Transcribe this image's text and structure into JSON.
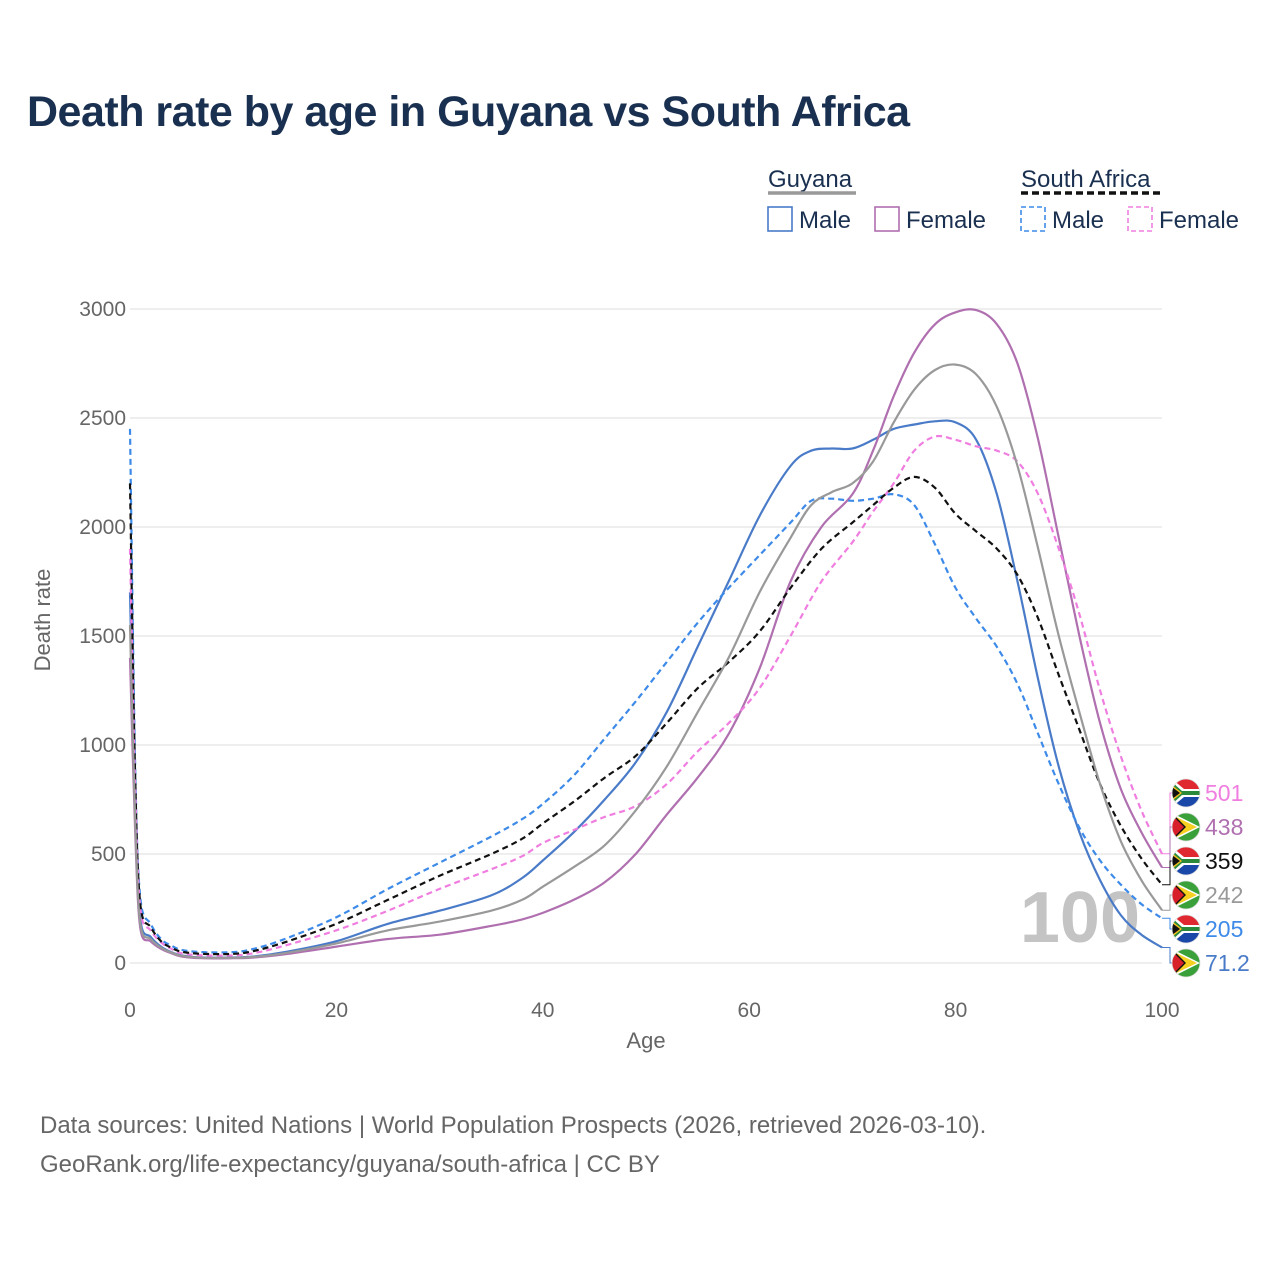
{
  "title": "Death rate by age in Guyana vs South Africa",
  "source_line1": "Data sources: United Nations | World Population Prospects (2026, retrieved 2026-03-10).",
  "source_line2": "GeoRank.org/life-expectancy/guyana/south-africa | CC BY",
  "legend": {
    "groups": [
      {
        "name": "Guyana",
        "dashed": false,
        "male": "Male",
        "female": "Female"
      },
      {
        "name": "South Africa",
        "dashed": true,
        "male": "Male",
        "female": "Female"
      }
    ]
  },
  "watermark": "100",
  "chart_data": {
    "type": "line",
    "title": "Death rate by age in Guyana vs South Africa",
    "xlabel": "Age",
    "ylabel": "Death rate",
    "xlim": [
      0,
      100
    ],
    "ylim": [
      0,
      3000
    ],
    "xticks": [
      0,
      20,
      40,
      60,
      80,
      100
    ],
    "yticks": [
      0,
      500,
      1000,
      1500,
      2000,
      2500,
      3000
    ],
    "grid": true,
    "series": [
      {
        "name": "Guyana Male",
        "color": "#4a7bc8",
        "dashed": false,
        "end_value": "71.2",
        "country": "guyana",
        "points": [
          [
            0,
            1700
          ],
          [
            0.5,
            700
          ],
          [
            1,
            200
          ],
          [
            2,
            120
          ],
          [
            3,
            75
          ],
          [
            4,
            50
          ],
          [
            5,
            35
          ],
          [
            7,
            25
          ],
          [
            10,
            25
          ],
          [
            12,
            30
          ],
          [
            15,
            50
          ],
          [
            20,
            100
          ],
          [
            25,
            180
          ],
          [
            30,
            240
          ],
          [
            35,
            310
          ],
          [
            38,
            390
          ],
          [
            40,
            470
          ],
          [
            43,
            600
          ],
          [
            46,
            750
          ],
          [
            49,
            920
          ],
          [
            52,
            1150
          ],
          [
            55,
            1450
          ],
          [
            58,
            1750
          ],
          [
            61,
            2050
          ],
          [
            64,
            2280
          ],
          [
            66,
            2350
          ],
          [
            68,
            2360
          ],
          [
            70,
            2360
          ],
          [
            72,
            2400
          ],
          [
            74,
            2450
          ],
          [
            76,
            2470
          ],
          [
            78,
            2485
          ],
          [
            80,
            2480
          ],
          [
            82,
            2400
          ],
          [
            84,
            2150
          ],
          [
            86,
            1750
          ],
          [
            88,
            1300
          ],
          [
            90,
            900
          ],
          [
            92,
            600
          ],
          [
            94,
            380
          ],
          [
            96,
            220
          ],
          [
            98,
            130
          ],
          [
            100,
            71.2
          ]
        ]
      },
      {
        "name": "Guyana Female",
        "color": "#b070b0",
        "dashed": false,
        "end_value": "438",
        "country": "guyana",
        "points": [
          [
            0,
            1400
          ],
          [
            0.5,
            600
          ],
          [
            1,
            160
          ],
          [
            2,
            100
          ],
          [
            3,
            65
          ],
          [
            4,
            45
          ],
          [
            5,
            30
          ],
          [
            7,
            22
          ],
          [
            10,
            22
          ],
          [
            12,
            25
          ],
          [
            15,
            40
          ],
          [
            20,
            75
          ],
          [
            25,
            110
          ],
          [
            30,
            130
          ],
          [
            35,
            170
          ],
          [
            38,
            200
          ],
          [
            40,
            230
          ],
          [
            43,
            290
          ],
          [
            46,
            370
          ],
          [
            49,
            500
          ],
          [
            52,
            680
          ],
          [
            55,
            850
          ],
          [
            58,
            1050
          ],
          [
            61,
            1350
          ],
          [
            64,
            1750
          ],
          [
            67,
            2000
          ],
          [
            70,
            2150
          ],
          [
            72,
            2350
          ],
          [
            74,
            2600
          ],
          [
            76,
            2800
          ],
          [
            78,
            2930
          ],
          [
            80,
            2985
          ],
          [
            82,
            2995
          ],
          [
            84,
            2930
          ],
          [
            86,
            2750
          ],
          [
            88,
            2400
          ],
          [
            90,
            1950
          ],
          [
            92,
            1500
          ],
          [
            94,
            1100
          ],
          [
            96,
            800
          ],
          [
            98,
            600
          ],
          [
            100,
            438
          ]
        ]
      },
      {
        "name": "South Africa Male",
        "color": "#3d8ae8",
        "dashed": true,
        "end_value": "205",
        "country": "south-africa",
        "points": [
          [
            0,
            2450
          ],
          [
            0.5,
            900
          ],
          [
            1,
            300
          ],
          [
            2,
            180
          ],
          [
            3,
            110
          ],
          [
            4,
            80
          ],
          [
            5,
            60
          ],
          [
            7,
            50
          ],
          [
            10,
            50
          ],
          [
            12,
            65
          ],
          [
            15,
            110
          ],
          [
            20,
            210
          ],
          [
            25,
            340
          ],
          [
            30,
            460
          ],
          [
            35,
            580
          ],
          [
            38,
            660
          ],
          [
            40,
            730
          ],
          [
            43,
            860
          ],
          [
            46,
            1030
          ],
          [
            49,
            1200
          ],
          [
            52,
            1380
          ],
          [
            55,
            1560
          ],
          [
            58,
            1720
          ],
          [
            61,
            1870
          ],
          [
            64,
            2020
          ],
          [
            66,
            2120
          ],
          [
            68,
            2130
          ],
          [
            70,
            2120
          ],
          [
            72,
            2130
          ],
          [
            74,
            2150
          ],
          [
            76,
            2100
          ],
          [
            78,
            1920
          ],
          [
            80,
            1720
          ],
          [
            82,
            1580
          ],
          [
            84,
            1450
          ],
          [
            86,
            1280
          ],
          [
            88,
            1050
          ],
          [
            90,
            820
          ],
          [
            92,
            620
          ],
          [
            94,
            470
          ],
          [
            96,
            360
          ],
          [
            98,
            270
          ],
          [
            100,
            205
          ]
        ]
      },
      {
        "name": "South Africa Female",
        "color": "#f07ee0",
        "dashed": true,
        "end_value": "501",
        "country": "south-africa",
        "points": [
          [
            0,
            1900
          ],
          [
            0.5,
            800
          ],
          [
            1,
            250
          ],
          [
            2,
            150
          ],
          [
            3,
            95
          ],
          [
            4,
            65
          ],
          [
            5,
            45
          ],
          [
            7,
            35
          ],
          [
            10,
            35
          ],
          [
            12,
            45
          ],
          [
            15,
            80
          ],
          [
            20,
            150
          ],
          [
            25,
            240
          ],
          [
            30,
            340
          ],
          [
            35,
            430
          ],
          [
            38,
            490
          ],
          [
            40,
            550
          ],
          [
            43,
            610
          ],
          [
            46,
            670
          ],
          [
            49,
            720
          ],
          [
            52,
            820
          ],
          [
            55,
            970
          ],
          [
            58,
            1100
          ],
          [
            61,
            1260
          ],
          [
            64,
            1500
          ],
          [
            67,
            1750
          ],
          [
            70,
            1930
          ],
          [
            72,
            2070
          ],
          [
            74,
            2200
          ],
          [
            76,
            2350
          ],
          [
            78,
            2415
          ],
          [
            80,
            2400
          ],
          [
            82,
            2370
          ],
          [
            84,
            2350
          ],
          [
            86,
            2300
          ],
          [
            88,
            2150
          ],
          [
            90,
            1900
          ],
          [
            92,
            1600
          ],
          [
            94,
            1250
          ],
          [
            96,
            950
          ],
          [
            98,
            700
          ],
          [
            100,
            501
          ]
        ]
      },
      {
        "name": "South Africa Total",
        "color": "#111111",
        "dashed": true,
        "end_value": "359",
        "country": "south-africa",
        "points": [
          [
            0,
            2200
          ],
          [
            0.5,
            850
          ],
          [
            1,
            270
          ],
          [
            2,
            165
          ],
          [
            3,
            100
          ],
          [
            4,
            70
          ],
          [
            5,
            52
          ],
          [
            7,
            42
          ],
          [
            10,
            42
          ],
          [
            12,
            55
          ],
          [
            15,
            95
          ],
          [
            20,
            180
          ],
          [
            25,
            290
          ],
          [
            30,
            400
          ],
          [
            35,
            500
          ],
          [
            38,
            570
          ],
          [
            40,
            640
          ],
          [
            43,
            740
          ],
          [
            46,
            850
          ],
          [
            49,
            950
          ],
          [
            52,
            1100
          ],
          [
            55,
            1260
          ],
          [
            58,
            1380
          ],
          [
            61,
            1520
          ],
          [
            64,
            1720
          ],
          [
            67,
            1900
          ],
          [
            70,
            2020
          ],
          [
            72,
            2100
          ],
          [
            74,
            2180
          ],
          [
            76,
            2230
          ],
          [
            78,
            2180
          ],
          [
            80,
            2060
          ],
          [
            82,
            1980
          ],
          [
            84,
            1900
          ],
          [
            86,
            1780
          ],
          [
            88,
            1580
          ],
          [
            90,
            1320
          ],
          [
            92,
            1070
          ],
          [
            94,
            820
          ],
          [
            96,
            630
          ],
          [
            98,
            480
          ],
          [
            100,
            359
          ]
        ]
      },
      {
        "name": "Guyana Total",
        "color": "#999999",
        "dashed": false,
        "end_value": "242",
        "country": "guyana",
        "points": [
          [
            0,
            1550
          ],
          [
            0.5,
            650
          ],
          [
            1,
            180
          ],
          [
            2,
            110
          ],
          [
            3,
            70
          ],
          [
            4,
            48
          ],
          [
            5,
            33
          ],
          [
            7,
            24
          ],
          [
            10,
            24
          ],
          [
            12,
            28
          ],
          [
            15,
            45
          ],
          [
            20,
            90
          ],
          [
            25,
            150
          ],
          [
            30,
            190
          ],
          [
            35,
            240
          ],
          [
            38,
            290
          ],
          [
            40,
            350
          ],
          [
            43,
            440
          ],
          [
            46,
            540
          ],
          [
            49,
            700
          ],
          [
            52,
            900
          ],
          [
            55,
            1150
          ],
          [
            58,
            1400
          ],
          [
            61,
            1700
          ],
          [
            64,
            1950
          ],
          [
            66,
            2100
          ],
          [
            68,
            2160
          ],
          [
            70,
            2200
          ],
          [
            72,
            2300
          ],
          [
            74,
            2480
          ],
          [
            76,
            2630
          ],
          [
            78,
            2720
          ],
          [
            80,
            2745
          ],
          [
            82,
            2700
          ],
          [
            84,
            2550
          ],
          [
            86,
            2280
          ],
          [
            88,
            1900
          ],
          [
            90,
            1500
          ],
          [
            92,
            1150
          ],
          [
            94,
            820
          ],
          [
            96,
            560
          ],
          [
            98,
            380
          ],
          [
            100,
            242
          ]
        ]
      }
    ]
  }
}
